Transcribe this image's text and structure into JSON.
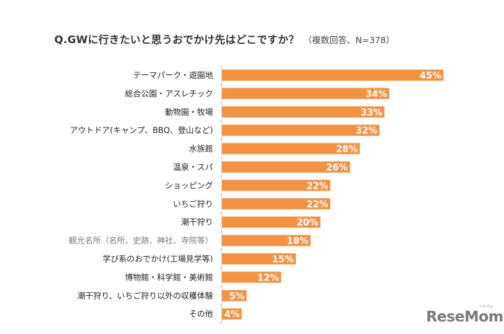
{
  "chart_data": {
    "type": "bar",
    "orientation": "horizontal",
    "title": "Q.GWに行きたいと思うおでかけ先はどこですか？",
    "subtitle": "（複数回答、N=378）",
    "xlabel": "",
    "ylabel": "",
    "categories": [
      "テーマパーク・遊園地",
      "総合公園・アスレチック",
      "動物園・牧場",
      "アウトドア(キャンプ、BBQ、登山など)",
      "水族館",
      "温泉・スパ",
      "ショッピング",
      "いちご狩り",
      "潮干狩り",
      "観光名所（名所、史跡、神社、寺院等）",
      "学び系のおでかけ(工場見学等)",
      "博物館・科学館・美術館",
      "潮干狩り、いちご狩り以外の収穫体験",
      "その他"
    ],
    "values": [
      45,
      34,
      33,
      32,
      28,
      26,
      22,
      22,
      20,
      18,
      15,
      12,
      5,
      4
    ],
    "value_labels": [
      "45%",
      "34%",
      "33%",
      "32%",
      "28%",
      "26%",
      "22%",
      "22%",
      "20%",
      "18%",
      "15%",
      "12%",
      "5%",
      "4%"
    ],
    "unit": "%",
    "xlim": [
      0,
      45
    ],
    "grid": false,
    "legend": "none",
    "bar_color": "#F39243",
    "value_label_color": "#ffffff",
    "muted_label_index": 9
  },
  "watermark": {
    "text": "ReseMom",
    "kana": "リセマム"
  }
}
